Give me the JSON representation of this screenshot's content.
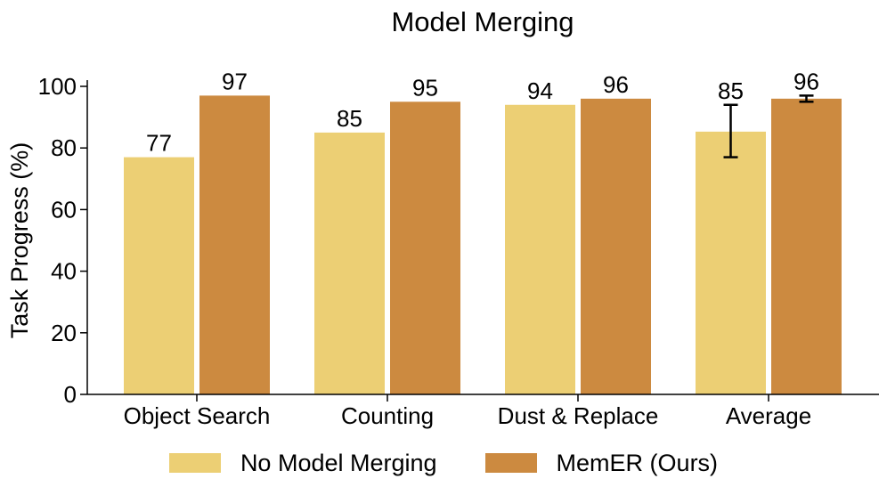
{
  "chart_data": {
    "type": "bar",
    "title": "Model Merging",
    "xlabel": "",
    "ylabel": "Task Progress (%)",
    "ylim": [
      0,
      100
    ],
    "yticks": [
      0,
      20,
      40,
      60,
      80,
      100
    ],
    "grid": false,
    "legend_position": "bottom",
    "categories": [
      "Object Search",
      "Counting",
      "Dust & Replace",
      "Average"
    ],
    "series": [
      {
        "name": "No Model Merging",
        "color": "#ECCF74",
        "values": [
          77,
          85,
          94,
          85.3
        ],
        "labels": [
          "77",
          "85",
          "94",
          "85"
        ],
        "error": [
          null,
          null,
          null,
          [
            77,
            94
          ]
        ]
      },
      {
        "name": "MemER (Ours)",
        "color": "#CC8A40",
        "values": [
          97,
          95,
          96,
          96
        ],
        "labels": [
          "97",
          "95",
          "96",
          "96"
        ],
        "error": [
          null,
          null,
          null,
          [
            95,
            97
          ]
        ]
      }
    ]
  }
}
